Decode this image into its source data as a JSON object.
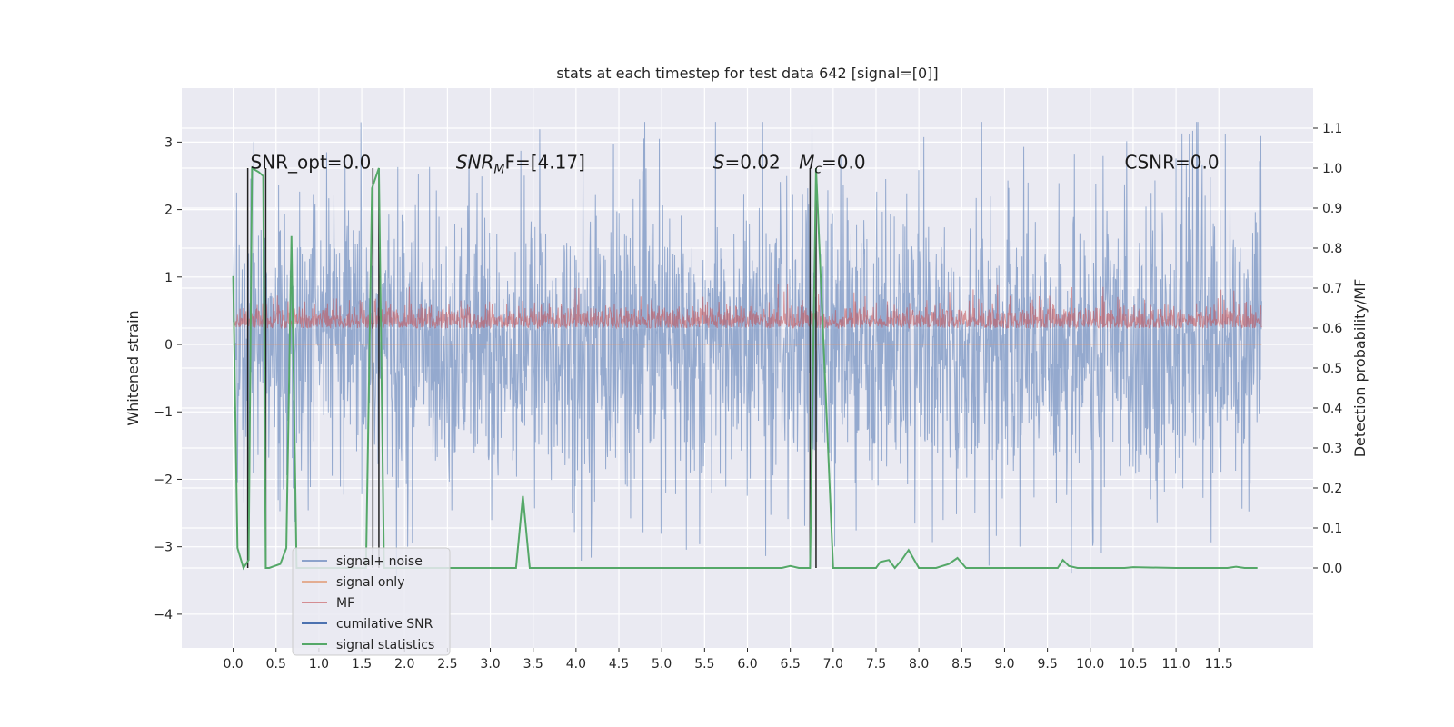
{
  "chart_data": {
    "type": "line",
    "title": "stats at each timestep for test data 642 [signal=[0]]",
    "xlabel": "",
    "ylabel": "Whitened strain",
    "ylabel_right": "Detection probability/MF",
    "xlim": [
      -0.6,
      12.6
    ],
    "ylim": [
      -4.5,
      3.8
    ],
    "ylim_right": [
      -0.2,
      1.2
    ],
    "x_ticks": [
      0.0,
      0.5,
      1.0,
      1.5,
      2.0,
      2.5,
      3.0,
      3.5,
      4.0,
      4.5,
      5.0,
      5.5,
      6.0,
      6.5,
      7.0,
      7.5,
      8.0,
      8.5,
      9.0,
      9.5,
      10.0,
      10.5,
      11.0,
      11.5
    ],
    "x_tick_labels": [
      "0.0",
      "0.5",
      "1.0",
      "1.5",
      "2.0",
      "2.5",
      "3.0",
      "3.5",
      "4.0",
      "4.5",
      "5.0",
      "5.5",
      "6.0",
      "6.5",
      "7.0",
      "7.5",
      "8.0",
      "8.5",
      "9.0",
      "9.5",
      "10.0",
      "10.5",
      "11.0",
      "11.5"
    ],
    "y_ticks": [
      -4,
      -3,
      -2,
      -1,
      0,
      1,
      2,
      3
    ],
    "y_tick_labels": [
      "−4",
      "−3",
      "−2",
      "−1",
      "0",
      "1",
      "2",
      "3"
    ],
    "y_right_ticks": [
      0.0,
      0.1,
      0.2,
      0.3,
      0.4,
      0.5,
      0.6,
      0.7,
      0.8,
      0.9,
      1.0,
      1.1
    ],
    "y_right_tick_labels": [
      "0.0",
      "0.1",
      "0.2",
      "0.3",
      "0.4",
      "0.5",
      "0.6",
      "0.7",
      "0.8",
      "0.9",
      "1.0",
      "1.1"
    ],
    "grid": true,
    "legend_position": "lower-left",
    "colors": {
      "background": "#eaeaf2",
      "grid": "#ffffff",
      "signal_noise": "#4c72b0",
      "signal_only": "#dd8452",
      "mf": "#c44e52",
      "cumulative_snr": "#4c72b0",
      "signal_statistics": "#55a868",
      "vlines": "#222222"
    },
    "annotations": [
      {
        "text": "SNR_opt=0.0",
        "x": 0.2,
        "y": 2.7
      },
      {
        "text": "SNR",
        "sub": "M",
        "text2": "F=[4.17]",
        "x": 2.6,
        "y": 2.7
      },
      {
        "text": "S",
        "text2": "=0.02",
        "x": 5.6,
        "y": 2.7
      },
      {
        "text": "M",
        "sub": "c",
        "text2": "=0.0",
        "x": 6.6,
        "y": 2.7
      },
      {
        "text": "CSNR=0.0",
        "x": 10.4,
        "y": 2.7
      }
    ],
    "series": [
      {
        "name": "signal+ noise",
        "style": "noise",
        "x_range": [
          0.0,
          12.0
        ],
        "center": 0.0,
        "amplitude": 1.5,
        "peak": 3.3
      },
      {
        "name": "signal only",
        "style": "flat",
        "values": [
          0.0
        ]
      },
      {
        "name": "MF",
        "style": "noise",
        "x_range": [
          0.0,
          12.0
        ],
        "center": 0.28,
        "amplitude": 0.3,
        "peak": 0.9
      },
      {
        "name": "cumilative SNR",
        "style": "vlines",
        "x": [
          0.17,
          0.38,
          1.63,
          1.7,
          6.73,
          6.8
        ],
        "y_range_right": [
          0.0,
          1.0
        ]
      },
      {
        "name": "signal statistics",
        "style": "line-right",
        "x": [
          0.0,
          0.05,
          0.12,
          0.18,
          0.22,
          0.3,
          0.35,
          0.38,
          0.42,
          0.55,
          0.62,
          0.68,
          0.74,
          0.78,
          1.0,
          1.45,
          1.55,
          1.62,
          1.7,
          1.76,
          1.82,
          2.0,
          2.5,
          3.0,
          3.3,
          3.38,
          3.46,
          4.0,
          5.0,
          6.0,
          6.4,
          6.5,
          6.6,
          6.73,
          6.8,
          7.0,
          7.5,
          7.55,
          7.65,
          7.72,
          7.8,
          7.88,
          8.0,
          8.2,
          8.35,
          8.45,
          8.55,
          8.7,
          9.0,
          9.5,
          9.62,
          9.68,
          9.75,
          9.85,
          10.0,
          10.4,
          10.5,
          11.0,
          11.6,
          11.7,
          11.8,
          11.9,
          11.95
        ],
        "values": [
          0.73,
          0.05,
          0.0,
          0.02,
          1.0,
          0.99,
          0.98,
          0.0,
          0.0,
          0.01,
          0.05,
          0.83,
          0.0,
          0.0,
          0.0,
          0.0,
          0.0,
          0.95,
          1.0,
          0.0,
          0.0,
          0.0,
          0.0,
          0.0,
          0.0,
          0.18,
          0.0,
          0.0,
          0.0,
          0.0,
          0.0,
          0.005,
          0.0,
          0.0,
          1.0,
          0.0,
          0.0,
          0.015,
          0.02,
          0.0,
          0.02,
          0.045,
          0.0,
          0.0,
          0.01,
          0.025,
          0.0,
          0.0,
          0.0,
          0.0,
          0.0,
          0.02,
          0.005,
          0.0,
          0.0,
          0.0,
          0.002,
          0.0,
          0.0,
          0.003,
          0.0,
          0.0,
          0.0
        ]
      }
    ],
    "legend": [
      {
        "label": "signal+ noise",
        "color_key": "signal_noise"
      },
      {
        "label": "signal only",
        "color_key": "signal_only"
      },
      {
        "label": "MF",
        "color_key": "mf"
      },
      {
        "label": "cumilative SNR",
        "color_key": "cumulative_snr"
      },
      {
        "label": "signal statistics",
        "color_key": "signal_statistics"
      }
    ]
  }
}
